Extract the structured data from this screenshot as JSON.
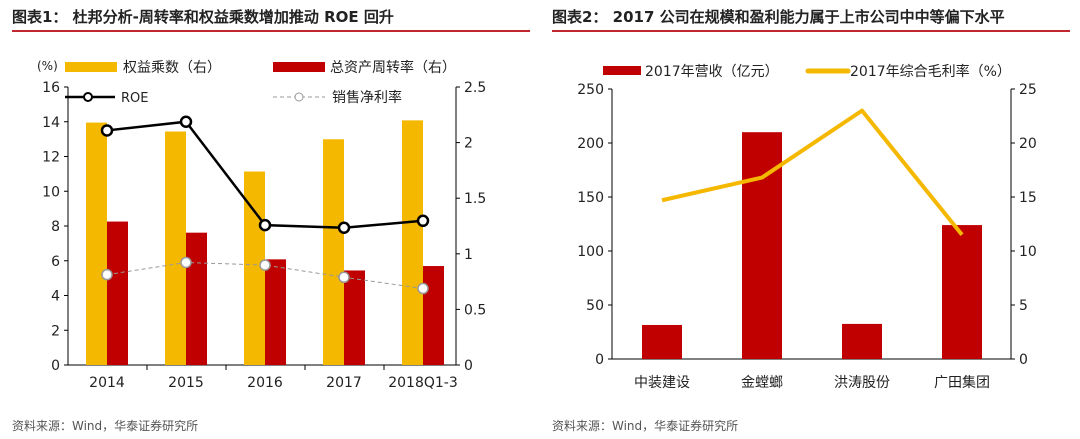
{
  "chart_data": [
    {
      "type": "bar+line",
      "title": "图表1： 杜邦分析-周转率和权益乘数增加推动 ROE 回升",
      "left_unit": "(%)",
      "categories": [
        "2014",
        "2015",
        "2016",
        "2017",
        "2018Q1-3"
      ],
      "ylim_left": [
        0,
        16
      ],
      "yticks_left": [
        "0",
        "2",
        "4",
        "6",
        "8",
        "10",
        "12",
        "14",
        "16"
      ],
      "ylim_right": [
        0,
        2.5
      ],
      "yticks_right": [
        "0",
        "0.5",
        "1",
        "1.5",
        "2",
        "2.5"
      ],
      "series": [
        {
          "name": "权益乘数（右）",
          "type": "bar",
          "axis": "right",
          "color": "#f5b800",
          "values": [
            2.18,
            2.1,
            1.74,
            2.03,
            2.2
          ]
        },
        {
          "name": "总资产周转率（右）",
          "type": "bar",
          "axis": "right",
          "color": "#c00000",
          "values": [
            1.29,
            1.19,
            0.95,
            0.85,
            0.89
          ]
        },
        {
          "name": "ROE",
          "type": "line",
          "axis": "left",
          "color": "#000000",
          "values": [
            13.5,
            14.0,
            8.05,
            7.9,
            8.3
          ]
        },
        {
          "name": "销售净利率",
          "type": "line-dashed",
          "axis": "left",
          "color": "#999999",
          "values": [
            5.2,
            5.9,
            5.75,
            5.05,
            4.4
          ]
        }
      ],
      "source": "资料来源：Wind，华泰证券研究所",
      "legend": "top"
    },
    {
      "type": "bar+line",
      "title": "图表2： 2017 公司在规模和盈利能力属于上市公司中中等偏下水平",
      "categories": [
        "中装建设",
        "金螳螂",
        "洪涛股份",
        "广田集团"
      ],
      "ylim_left": [
        0,
        250
      ],
      "yticks_left": [
        "0",
        "50",
        "100",
        "150",
        "200",
        "250"
      ],
      "ylim_right": [
        0,
        25
      ],
      "yticks_right": [
        "0",
        "5",
        "10",
        "15",
        "20",
        "25"
      ],
      "series": [
        {
          "name": "2017年营收（亿元）",
          "type": "bar",
          "axis": "left",
          "color": "#c00000",
          "values": [
            31.5,
            210,
            32.5,
            124
          ]
        },
        {
          "name": "2017年综合毛利率（%）",
          "type": "line",
          "axis": "right",
          "color": "#f5b800",
          "values": [
            14.7,
            16.8,
            23.0,
            11.5
          ]
        }
      ],
      "source": "资料来源：Wind，华泰证券研究所",
      "legend": "top"
    }
  ]
}
